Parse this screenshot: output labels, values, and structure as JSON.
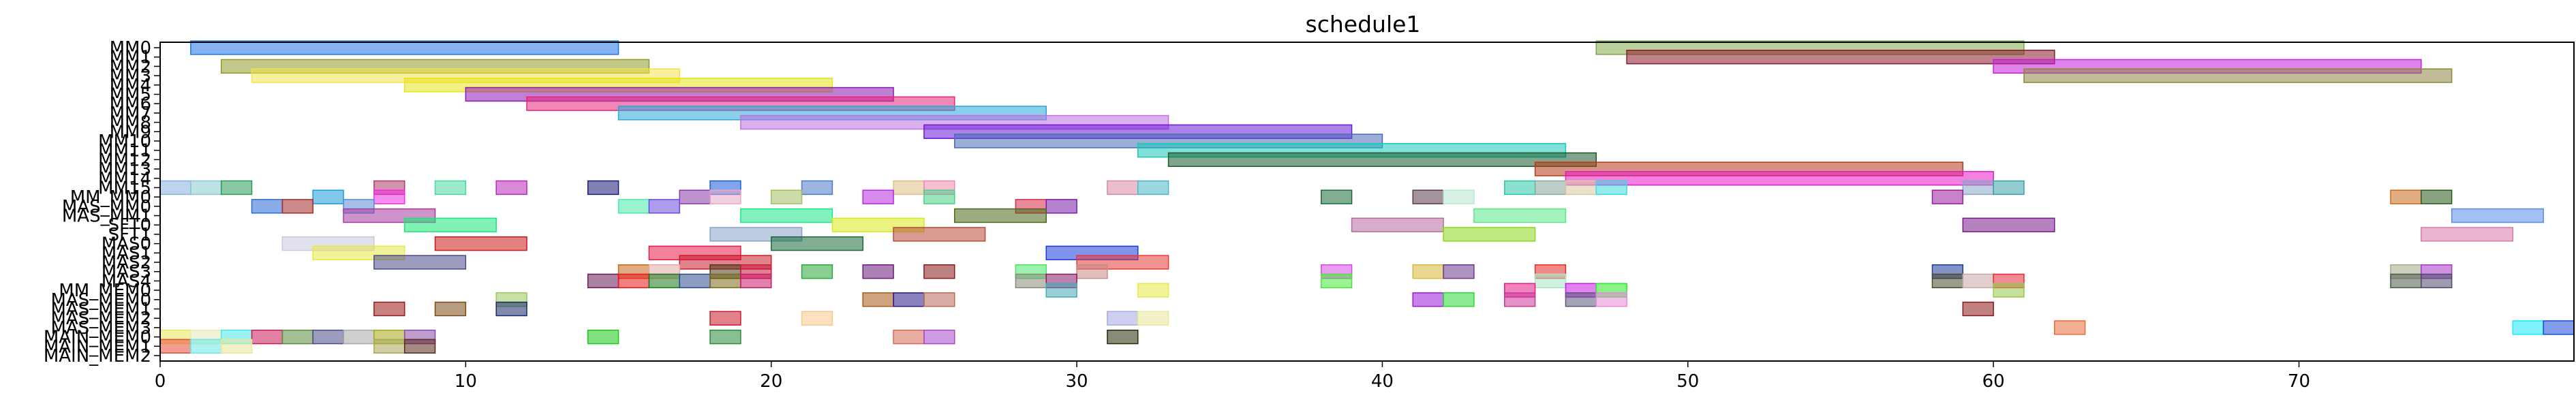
{
  "chart_data": {
    "type": "gantt",
    "title": "schedule1",
    "xlim": [
      0,
      79
    ],
    "xticks": [
      0,
      10,
      20,
      30,
      40,
      50,
      60,
      70
    ],
    "grid": false,
    "rows": [
      "MM0",
      "MM1",
      "MM2",
      "MM3",
      "MM4",
      "MM5",
      "MM6",
      "MM7",
      "MM8",
      "MM9",
      "MM10",
      "MM11",
      "MM12",
      "MM13",
      "MM14",
      "MM15",
      "MM_MM0",
      "MAS_MM0",
      "MAS_MM1",
      "SFT0",
      "SFT1",
      "MAS0",
      "MAS1",
      "MAS2",
      "MAS3",
      "MAS4",
      "MM_MEM0",
      "MAS_MEM0",
      "MAS_MEM1",
      "MAS_MEM2",
      "MAS_MEM3",
      "MAIN_MEM0",
      "MAIN_MEM1",
      "MAIN_MEM2"
    ],
    "bars": [
      {
        "row": 0,
        "start": 1,
        "end": 15,
        "color": "#1f77e4"
      },
      {
        "row": 0,
        "start": 47,
        "end": 61,
        "color": "#7fa84a"
      },
      {
        "row": 1,
        "start": 48,
        "end": 62,
        "color": "#8b1a2c"
      },
      {
        "row": 2,
        "start": 2,
        "end": 16,
        "color": "#8f9a2a"
      },
      {
        "row": 2,
        "start": 60,
        "end": 74,
        "color": "#c41fd9"
      },
      {
        "row": 3,
        "start": 3,
        "end": 17,
        "color": "#f0e44a"
      },
      {
        "row": 3,
        "start": 61,
        "end": 75,
        "color": "#8c8640"
      },
      {
        "row": 4,
        "start": 8,
        "end": 22,
        "color": "#e8e21a"
      },
      {
        "row": 5,
        "start": 10,
        "end": 24,
        "color": "#8c1ab0"
      },
      {
        "row": 6,
        "start": 12,
        "end": 26,
        "color": "#e8247a"
      },
      {
        "row": 7,
        "start": 15,
        "end": 29,
        "color": "#2aa8d8"
      },
      {
        "row": 8,
        "start": 19,
        "end": 33,
        "color": "#c070e0"
      },
      {
        "row": 9,
        "start": 25,
        "end": 39,
        "color": "#6a1ad8"
      },
      {
        "row": 10,
        "start": 26,
        "end": 40,
        "color": "#4a6ab8"
      },
      {
        "row": 11,
        "start": 32,
        "end": 46,
        "color": "#18c8b8"
      },
      {
        "row": 12,
        "start": 33,
        "end": 47,
        "color": "#1a5a2a"
      },
      {
        "row": 13,
        "start": 45,
        "end": 59,
        "color": "#b8381a"
      },
      {
        "row": 14,
        "start": 46,
        "end": 60,
        "color": "#e81ac8"
      },
      {
        "row": 15,
        "start": 0,
        "end": 1,
        "color": "#88b0e0"
      },
      {
        "row": 15,
        "start": 1,
        "end": 2,
        "color": "#88c8d0"
      },
      {
        "row": 15,
        "start": 2,
        "end": 3,
        "color": "#2a9a5a"
      },
      {
        "row": 15,
        "start": 7,
        "end": 8,
        "color": "#b03a6a"
      },
      {
        "row": 15,
        "start": 9,
        "end": 10,
        "color": "#4ad8a0"
      },
      {
        "row": 15,
        "start": 11,
        "end": 12,
        "color": "#b828b8"
      },
      {
        "row": 15,
        "start": 14,
        "end": 15,
        "color": "#1a1a7a"
      },
      {
        "row": 15,
        "start": 18,
        "end": 19,
        "color": "#1a5ad8"
      },
      {
        "row": 15,
        "start": 21,
        "end": 22,
        "color": "#4a7ac8"
      },
      {
        "row": 15,
        "start": 24,
        "end": 25,
        "color": "#e0c088"
      },
      {
        "row": 15,
        "start": 25,
        "end": 26,
        "color": "#f088b0"
      },
      {
        "row": 15,
        "start": 31,
        "end": 32,
        "color": "#d888a8"
      },
      {
        "row": 15,
        "start": 32,
        "end": 33,
        "color": "#48b8c8"
      },
      {
        "row": 15,
        "start": 44,
        "end": 45,
        "color": "#2ac8a8"
      },
      {
        "row": 15,
        "start": 45,
        "end": 46,
        "color": "#88a8a0"
      },
      {
        "row": 15,
        "start": 46,
        "end": 47,
        "color": "#d8c8a0"
      },
      {
        "row": 15,
        "start": 47,
        "end": 48,
        "color": "#40d8e0"
      },
      {
        "row": 15,
        "start": 59,
        "end": 60,
        "color": "#88a8c8"
      },
      {
        "row": 15,
        "start": 60,
        "end": 61,
        "color": "#3aa0a8"
      },
      {
        "row": 16,
        "start": 5,
        "end": 6,
        "color": "#1a9ad8"
      },
      {
        "row": 16,
        "start": 7,
        "end": 8,
        "color": "#f030e0"
      },
      {
        "row": 16,
        "start": 17,
        "end": 18,
        "color": "#8a3aa8"
      },
      {
        "row": 16,
        "start": 18,
        "end": 19,
        "color": "#e8a8c8"
      },
      {
        "row": 16,
        "start": 20,
        "end": 21,
        "color": "#a0c060"
      },
      {
        "row": 16,
        "start": 23,
        "end": 24,
        "color": "#b828e0"
      },
      {
        "row": 16,
        "start": 25,
        "end": 26,
        "color": "#48d088"
      },
      {
        "row": 16,
        "start": 38,
        "end": 39,
        "color": "#1a6a3a"
      },
      {
        "row": 16,
        "start": 41,
        "end": 42,
        "color": "#5a3a4a"
      },
      {
        "row": 16,
        "start": 42,
        "end": 43,
        "color": "#b8e8d0"
      },
      {
        "row": 16,
        "start": 58,
        "end": 59,
        "color": "#9a1aa0"
      },
      {
        "row": 16,
        "start": 73,
        "end": 74,
        "color": "#c86a1a"
      },
      {
        "row": 16,
        "start": 74,
        "end": 75,
        "color": "#2a5a1a"
      },
      {
        "row": 17,
        "start": 3,
        "end": 4,
        "color": "#2a6ad8"
      },
      {
        "row": 17,
        "start": 4,
        "end": 5,
        "color": "#a02a2a"
      },
      {
        "row": 17,
        "start": 6,
        "end": 7,
        "color": "#5a8ad8"
      },
      {
        "row": 17,
        "start": 15,
        "end": 16,
        "color": "#48e8a8"
      },
      {
        "row": 17,
        "start": 16,
        "end": 17,
        "color": "#6a4ae0"
      },
      {
        "row": 17,
        "start": 28,
        "end": 29,
        "color": "#d8284a"
      },
      {
        "row": 17,
        "start": 29,
        "end": 30,
        "color": "#7a1aa8"
      },
      {
        "row": 18,
        "start": 6,
        "end": 9,
        "color": "#a83aa0"
      },
      {
        "row": 18,
        "start": 19,
        "end": 22,
        "color": "#1ae888"
      },
      {
        "row": 18,
        "start": 26,
        "end": 29,
        "color": "#4a6a1a"
      },
      {
        "row": 18,
        "start": 43,
        "end": 46,
        "color": "#58e888"
      },
      {
        "row": 18,
        "start": 75,
        "end": 78,
        "color": "#5a8ae8"
      },
      {
        "row": 19,
        "start": 8,
        "end": 11,
        "color": "#1ae878"
      },
      {
        "row": 19,
        "start": 22,
        "end": 25,
        "color": "#d8e81a"
      },
      {
        "row": 19,
        "start": 39,
        "end": 42,
        "color": "#b868a0"
      },
      {
        "row": 19,
        "start": 59,
        "end": 62,
        "color": "#7a1a8a"
      },
      {
        "row": 20,
        "start": 18,
        "end": 21,
        "color": "#8aa0c8"
      },
      {
        "row": 20,
        "start": 24,
        "end": 27,
        "color": "#b84a38"
      },
      {
        "row": 20,
        "start": 42,
        "end": 45,
        "color": "#8ad81a"
      },
      {
        "row": 20,
        "start": 74,
        "end": 77,
        "color": "#d878a8"
      },
      {
        "row": 21,
        "start": 4,
        "end": 7,
        "color": "#c8c8e0"
      },
      {
        "row": 21,
        "start": 9,
        "end": 12,
        "color": "#c81a1a"
      },
      {
        "row": 21,
        "start": 20,
        "end": 23,
        "color": "#1a6a3a"
      },
      {
        "row": 22,
        "start": 5,
        "end": 8,
        "color": "#e8e848"
      },
      {
        "row": 22,
        "start": 16,
        "end": 19,
        "color": "#e81a4a"
      },
      {
        "row": 22,
        "start": 29,
        "end": 32,
        "color": "#1a3ad8"
      },
      {
        "row": 23,
        "start": 7,
        "end": 10,
        "color": "#4a4a8a"
      },
      {
        "row": 23,
        "start": 17,
        "end": 20,
        "color": "#c81a2a"
      },
      {
        "row": 23,
        "start": 30,
        "end": 33,
        "color": "#e83a3a"
      },
      {
        "row": 24,
        "start": 15,
        "end": 16,
        "color": "#c8681a"
      },
      {
        "row": 24,
        "start": 16,
        "end": 17,
        "color": "#e8a8a8"
      },
      {
        "row": 24,
        "start": 18,
        "end": 19,
        "color": "#4a3a1a"
      },
      {
        "row": 24,
        "start": 19,
        "end": 20,
        "color": "#c81a3a"
      },
      {
        "row": 24,
        "start": 21,
        "end": 22,
        "color": "#28a838"
      },
      {
        "row": 24,
        "start": 23,
        "end": 24,
        "color": "#6a1a7a"
      },
      {
        "row": 24,
        "start": 25,
        "end": 26,
        "color": "#8a1a1a"
      },
      {
        "row": 24,
        "start": 28,
        "end": 29,
        "color": "#48e868"
      },
      {
        "row": 24,
        "start": 30,
        "end": 31,
        "color": "#c88a88"
      },
      {
        "row": 24,
        "start": 38,
        "end": 39,
        "color": "#d848e8"
      },
      {
        "row": 24,
        "start": 41,
        "end": 42,
        "color": "#d8b838"
      },
      {
        "row": 24,
        "start": 42,
        "end": 43,
        "color": "#6a3a8a"
      },
      {
        "row": 24,
        "start": 45,
        "end": 46,
        "color": "#e82a2a"
      },
      {
        "row": 24,
        "start": 58,
        "end": 59,
        "color": "#1a3a9a"
      },
      {
        "row": 24,
        "start": 73,
        "end": 74,
        "color": "#a8a888"
      },
      {
        "row": 24,
        "start": 74,
        "end": 75,
        "color": "#a838c8"
      },
      {
        "row": 25,
        "start": 14,
        "end": 15,
        "color": "#6a1a5a"
      },
      {
        "row": 25,
        "start": 15,
        "end": 16,
        "color": "#e8181a"
      },
      {
        "row": 25,
        "start": 16,
        "end": 17,
        "color": "#1a7a1a"
      },
      {
        "row": 25,
        "start": 17,
        "end": 18,
        "color": "#2a4a8a"
      },
      {
        "row": 25,
        "start": 18,
        "end": 19,
        "color": "#7a6a1a"
      },
      {
        "row": 25,
        "start": 19,
        "end": 20,
        "color": "#c81a6a"
      },
      {
        "row": 25,
        "start": 28,
        "end": 29,
        "color": "#8a8a7a"
      },
      {
        "row": 25,
        "start": 29,
        "end": 30,
        "color": "#8a1a6a"
      },
      {
        "row": 25,
        "start": 38,
        "end": 39,
        "color": "#48e838"
      },
      {
        "row": 25,
        "start": 45,
        "end": 46,
        "color": "#a8e8c8"
      },
      {
        "row": 25,
        "start": 58,
        "end": 59,
        "color": "#4a4a2a"
      },
      {
        "row": 25,
        "start": 59,
        "end": 60,
        "color": "#c8a8a8"
      },
      {
        "row": 25,
        "start": 60,
        "end": 61,
        "color": "#e82a3a"
      },
      {
        "row": 25,
        "start": 73,
        "end": 74,
        "color": "#4a5a4a"
      },
      {
        "row": 25,
        "start": 74,
        "end": 75,
        "color": "#4a4a6a"
      },
      {
        "row": 26,
        "start": 29,
        "end": 30,
        "color": "#48a8b8"
      },
      {
        "row": 26,
        "start": 32,
        "end": 33,
        "color": "#e8e848"
      },
      {
        "row": 26,
        "start": 44,
        "end": 45,
        "color": "#e81a8a"
      },
      {
        "row": 26,
        "start": 46,
        "end": 47,
        "color": "#c81ae8"
      },
      {
        "row": 26,
        "start": 47,
        "end": 48,
        "color": "#2ae828"
      },
      {
        "row": 26,
        "start": 60,
        "end": 61,
        "color": "#98c848"
      },
      {
        "row": 27,
        "start": 11,
        "end": 12,
        "color": "#98c858"
      },
      {
        "row": 27,
        "start": 23,
        "end": 24,
        "color": "#a85a18"
      },
      {
        "row": 27,
        "start": 24,
        "end": 25,
        "color": "#2a1a8a"
      },
      {
        "row": 27,
        "start": 25,
        "end": 26,
        "color": "#b86a5a"
      },
      {
        "row": 27,
        "start": 41,
        "end": 42,
        "color": "#9a1ad8"
      },
      {
        "row": 27,
        "start": 42,
        "end": 43,
        "color": "#2ad838"
      },
      {
        "row": 27,
        "start": 44,
        "end": 45,
        "color": "#c83898"
      },
      {
        "row": 27,
        "start": 46,
        "end": 47,
        "color": "#5a5a7a"
      },
      {
        "row": 27,
        "start": 47,
        "end": 48,
        "color": "#e888d8"
      },
      {
        "row": 28,
        "start": 7,
        "end": 8,
        "color": "#9a1a1a"
      },
      {
        "row": 28,
        "start": 9,
        "end": 10,
        "color": "#7a4a1a"
      },
      {
        "row": 28,
        "start": 11,
        "end": 12,
        "color": "#1a2a6a"
      },
      {
        "row": 28,
        "start": 59,
        "end": 60,
        "color": "#8a1a1a"
      },
      {
        "row": 29,
        "start": 18,
        "end": 19,
        "color": "#c81a2a"
      },
      {
        "row": 29,
        "start": 21,
        "end": 22,
        "color": "#f8c888"
      },
      {
        "row": 29,
        "start": 31,
        "end": 32,
        "color": "#a8a8e8"
      },
      {
        "row": 29,
        "start": 32,
        "end": 33,
        "color": "#e8e898"
      },
      {
        "row": 30,
        "start": 62,
        "end": 63,
        "color": "#e86a38"
      },
      {
        "row": 30,
        "start": 77,
        "end": 78,
        "color": "#18e8f8"
      },
      {
        "row": 30,
        "start": 78,
        "end": 79,
        "color": "#1a4ad8"
      },
      {
        "row": 31,
        "start": 0,
        "end": 1,
        "color": "#e8e858"
      },
      {
        "row": 31,
        "start": 1,
        "end": 2,
        "color": "#e8e8b8"
      },
      {
        "row": 31,
        "start": 2,
        "end": 3,
        "color": "#48e8e8"
      },
      {
        "row": 31,
        "start": 3,
        "end": 4,
        "color": "#c81a5a"
      },
      {
        "row": 31,
        "start": 4,
        "end": 5,
        "color": "#5a8a3a"
      },
      {
        "row": 31,
        "start": 5,
        "end": 6,
        "color": "#4a4a8a"
      },
      {
        "row": 31,
        "start": 6,
        "end": 7,
        "color": "#a8a8a8"
      },
      {
        "row": 31,
        "start": 7,
        "end": 8,
        "color": "#a8a818"
      },
      {
        "row": 31,
        "start": 8,
        "end": 9,
        "color": "#8a4aa8"
      },
      {
        "row": 31,
        "start": 14,
        "end": 15,
        "color": "#1ac81a"
      },
      {
        "row": 31,
        "start": 18,
        "end": 19,
        "color": "#2a8a3a"
      },
      {
        "row": 31,
        "start": 24,
        "end": 25,
        "color": "#d86a5a"
      },
      {
        "row": 31,
        "start": 25,
        "end": 26,
        "color": "#a848c8"
      },
      {
        "row": 31,
        "start": 31,
        "end": 32,
        "color": "#2a2a0a"
      },
      {
        "row": 32,
        "start": 0,
        "end": 1,
        "color": "#e84a3a"
      },
      {
        "row": 32,
        "start": 1,
        "end": 2,
        "color": "#68e8e8"
      },
      {
        "row": 32,
        "start": 2,
        "end": 3,
        "color": "#e8e898"
      },
      {
        "row": 32,
        "start": 7,
        "end": 8,
        "color": "#a8a858"
      },
      {
        "row": 32,
        "start": 8,
        "end": 9,
        "color": "#5a2a1a"
      }
    ]
  }
}
